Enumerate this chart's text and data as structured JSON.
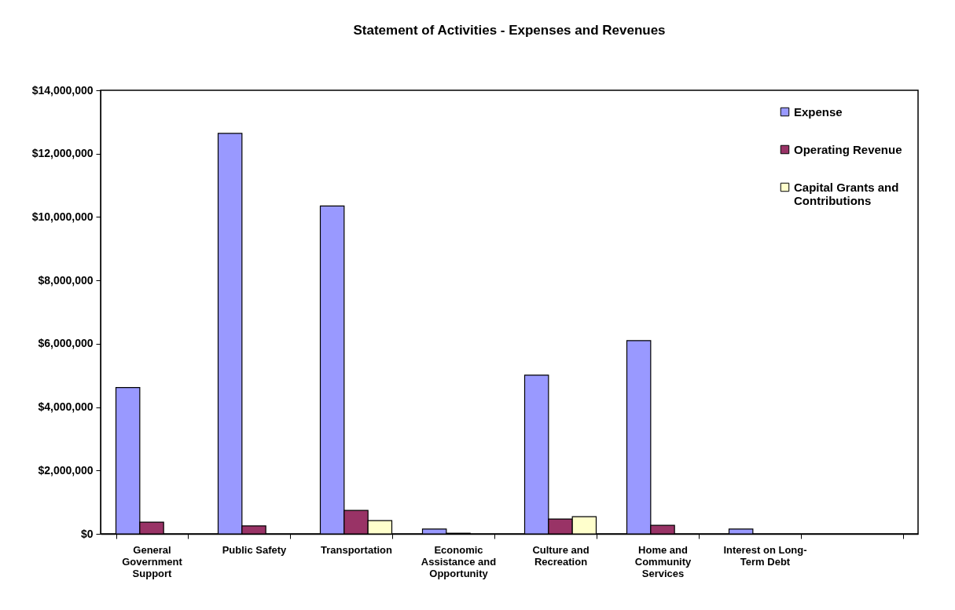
{
  "chart_data": {
    "type": "bar",
    "title": "Statement of Activities - Expenses and Revenues",
    "categories": [
      "General Government Support",
      "Public Safety",
      "Transportation",
      "Economic Assistance and Opportunity",
      "Culture and Recreation",
      "Home and Community Services",
      "Interest on Long-Term Debt",
      null
    ],
    "series": [
      {
        "name": "Expense",
        "color": "#9999ff",
        "values": [
          4620000,
          12640000,
          10350000,
          150000,
          5010000,
          6100000,
          150000,
          null
        ]
      },
      {
        "name": "Operating Revenue",
        "color": "#993366",
        "values": [
          370000,
          250000,
          740000,
          20000,
          470000,
          270000,
          null,
          null
        ]
      },
      {
        "name": "Capital Grants and Contributions",
        "color": "#ffffcc",
        "values": [
          null,
          null,
          420000,
          null,
          540000,
          null,
          null,
          null
        ]
      }
    ],
    "ylim": [
      0,
      14000000
    ],
    "yticks": [
      {
        "value": 0,
        "label": "$0"
      },
      {
        "value": 2000000,
        "label": "$2,000,000"
      },
      {
        "value": 4000000,
        "label": "$4,000,000"
      },
      {
        "value": 6000000,
        "label": "$6,000,000"
      },
      {
        "value": 8000000,
        "label": "$8,000,000"
      },
      {
        "value": 10000000,
        "label": "$10,000,000"
      },
      {
        "value": 12000000,
        "label": "$12,000,000"
      },
      {
        "value": 14000000,
        "label": "$14,000,000"
      }
    ],
    "grid": false,
    "legend": "top right"
  }
}
